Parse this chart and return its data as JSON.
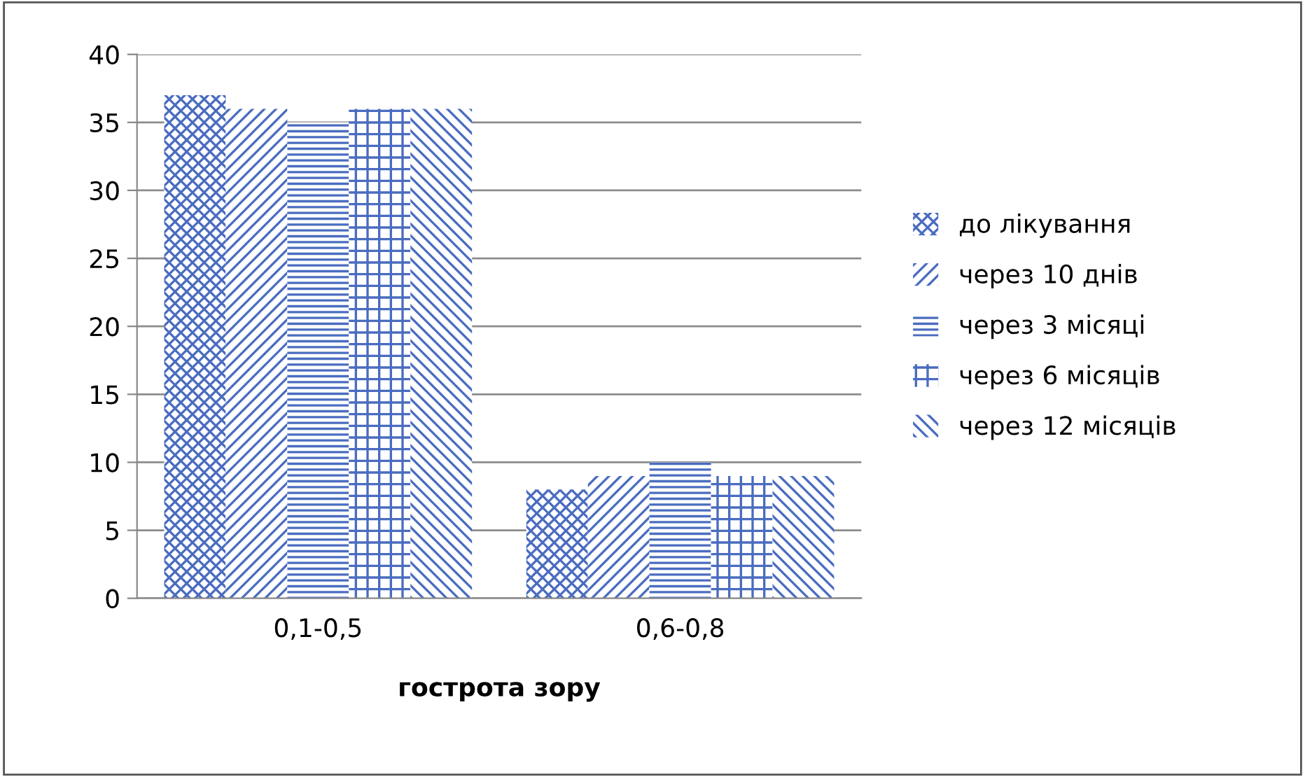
{
  "chart_data": {
    "type": "bar",
    "xlabel": "гострота зору",
    "categories": [
      "0,1-0,5",
      "0,6-0,8"
    ],
    "series": [
      {
        "name": "до лікування",
        "color": "#4a6cc0",
        "values": [
          37,
          8
        ]
      },
      {
        "name": "через 10 днів",
        "color": "#4a6cc0",
        "values": [
          36,
          9
        ]
      },
      {
        "name": "через 3 місяці",
        "color": "#4a6cc0",
        "values": [
          35,
          10
        ]
      },
      {
        "name": "через 6 місяців",
        "color": "#4a6cc0",
        "values": [
          36,
          9
        ]
      },
      {
        "name": "через 12 місяців",
        "color": "#4a6cc0",
        "values": [
          36,
          9
        ]
      }
    ],
    "ylim": [
      0,
      40
    ],
    "yticks": [
      0,
      5,
      10,
      15,
      20,
      25,
      30,
      35,
      40
    ],
    "grid": "y",
    "legend": "right"
  }
}
